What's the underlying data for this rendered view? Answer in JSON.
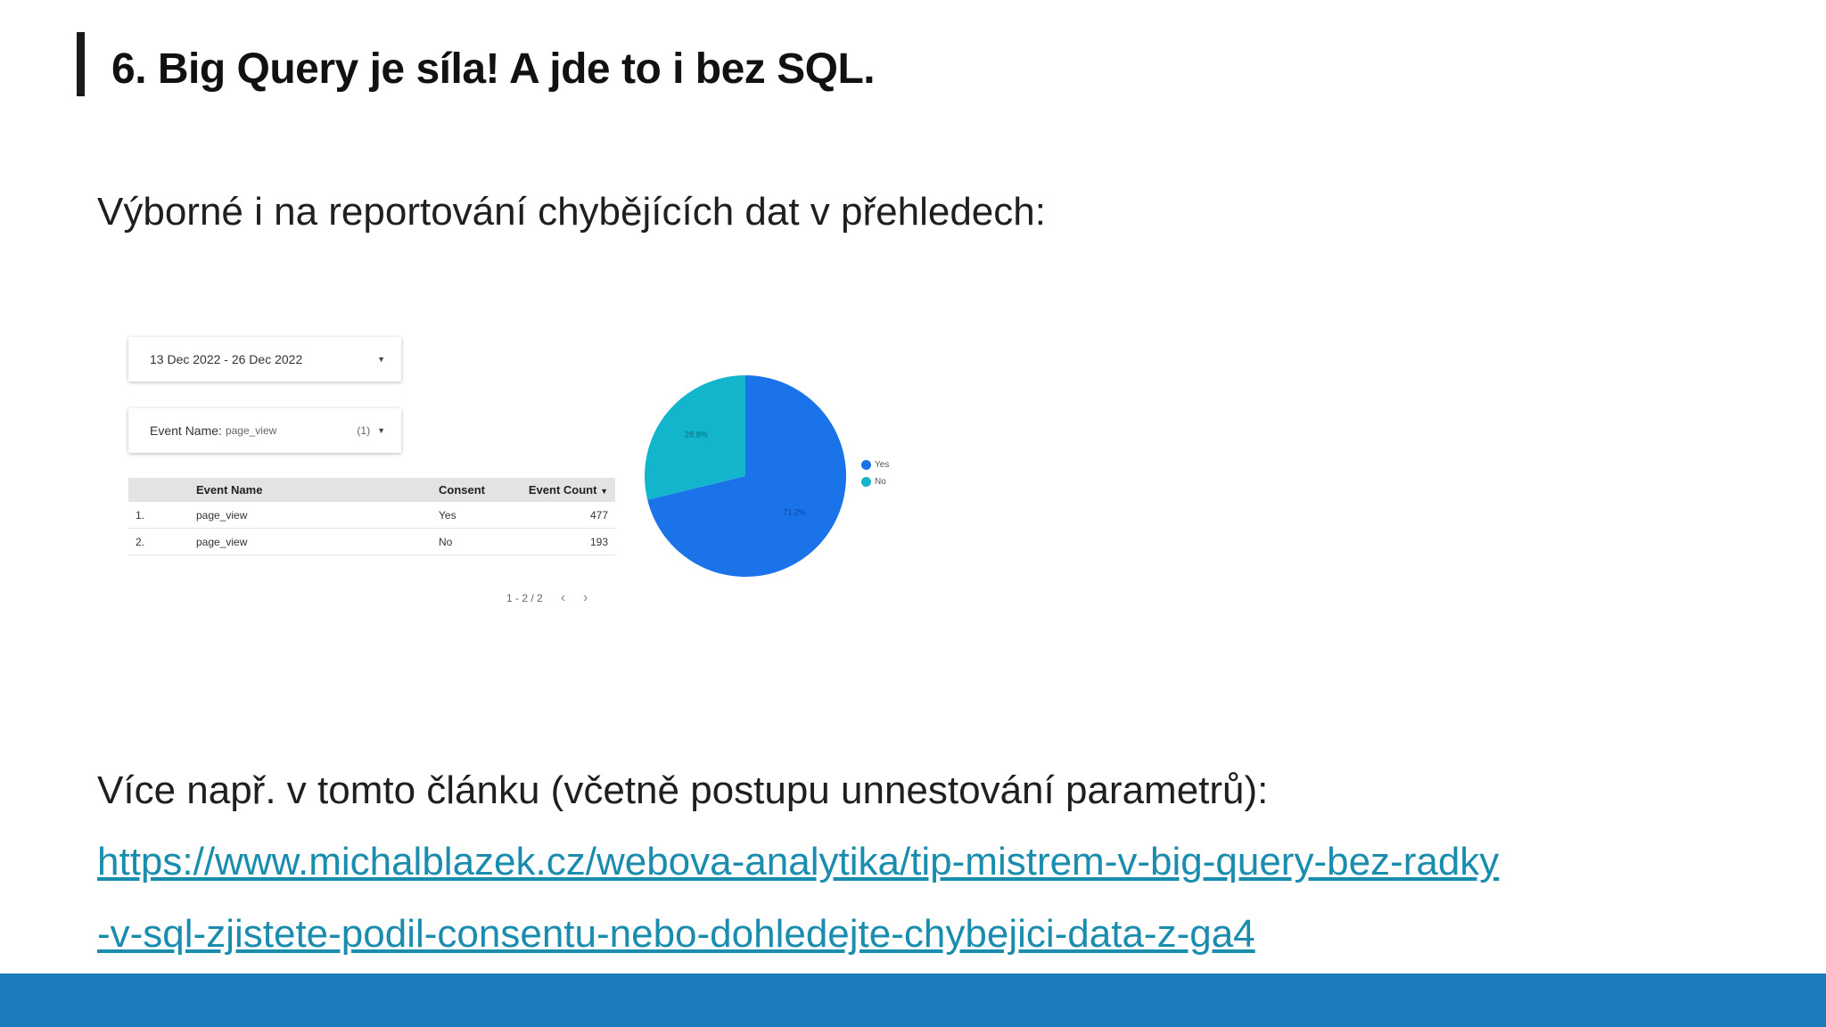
{
  "slide": {
    "title": "6. Big Query je síla! A jde to i bez SQL.",
    "subtitle": "Výborné i na reportování chybějících dat v přehledech:",
    "more_text": "Více např. v tomto článku (včetně postupu unnestování parametrů):",
    "link_line1": "https://www.michalblazek.cz/webova-analytika/tip-mistrem-v-big-query-bez-radky",
    "link_line2": "-v-sql-zjistete-podil-consentu-nebo-dohledejte-chybejici-data-z-ga4",
    "accent_color": "#1b7bbd",
    "link_color": "#1a8cae"
  },
  "report": {
    "date_range": "13 Dec 2022 - 26 Dec 2022",
    "filter_label": "Event Name:",
    "filter_value": "page_view",
    "filter_count": "(1)",
    "dropdown_icon": "caret-down-icon",
    "table": {
      "columns": [
        "Event Name",
        "Consent",
        "Event Count"
      ],
      "rows": [
        {
          "idx": "1.",
          "event": "page_view",
          "consent": "Yes",
          "count": "477"
        },
        {
          "idx": "2.",
          "event": "page_view",
          "consent": "No",
          "count": "193"
        }
      ]
    },
    "pager": "1 - 2 / 2"
  },
  "chart_data": {
    "type": "pie",
    "title": "",
    "labels": [
      "Yes",
      "No"
    ],
    "values": [
      71.2,
      28.8
    ],
    "data_labels": [
      "71.2%",
      "28.8%"
    ],
    "colors": [
      "#1a73e8",
      "#12b5cb"
    ],
    "legend": "right"
  }
}
